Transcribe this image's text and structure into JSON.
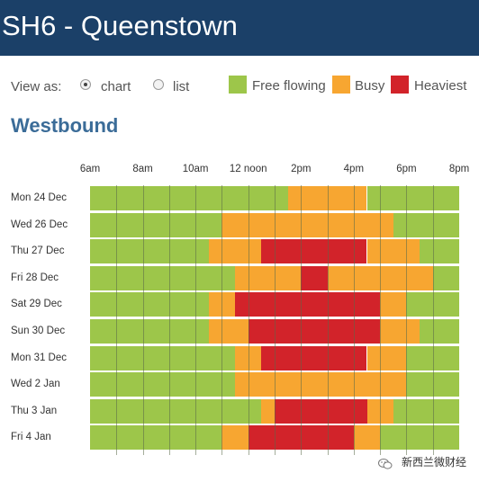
{
  "header": {
    "title": "SH6 - Queenstown"
  },
  "view": {
    "label": "View as:",
    "options": [
      "chart",
      "list"
    ],
    "selected": "chart"
  },
  "legend": [
    {
      "label": "Free flowing",
      "color": "#9dc64a"
    },
    {
      "label": "Busy",
      "color": "#f7a631"
    },
    {
      "label": "Heaviest",
      "color": "#d2232a"
    }
  ],
  "direction": "Westbound",
  "chart_data": {
    "type": "heatmap",
    "x_ticks": [
      "6am",
      "8am",
      "10am",
      "12 noon",
      "2pm",
      "4pm",
      "6pm",
      "8pm"
    ],
    "x_range_hours": [
      6,
      20
    ],
    "levels": {
      "F": "Free flowing",
      "B": "Busy",
      "H": "Heaviest"
    },
    "rows": [
      {
        "label": "Mon 24 Dec",
        "segments": [
          [
            6,
            13.5,
            "F"
          ],
          [
            13.5,
            16.5,
            "B"
          ],
          [
            16.5,
            20,
            "F"
          ]
        ]
      },
      {
        "label": "Wed 26 Dec",
        "segments": [
          [
            6,
            11,
            "F"
          ],
          [
            11,
            17.5,
            "B"
          ],
          [
            17.5,
            20,
            "F"
          ]
        ]
      },
      {
        "label": "Thu 27 Dec",
        "segments": [
          [
            6,
            10.5,
            "F"
          ],
          [
            10.5,
            12.5,
            "B"
          ],
          [
            12.5,
            16.5,
            "H"
          ],
          [
            16.5,
            18.5,
            "B"
          ],
          [
            18.5,
            20,
            "F"
          ]
        ]
      },
      {
        "label": "Fri 28 Dec",
        "segments": [
          [
            6,
            11.5,
            "F"
          ],
          [
            11.5,
            14,
            "B"
          ],
          [
            14,
            15,
            "H"
          ],
          [
            15,
            19,
            "B"
          ],
          [
            19,
            20,
            "F"
          ]
        ]
      },
      {
        "label": "Sat 29 Dec",
        "segments": [
          [
            6,
            10.5,
            "F"
          ],
          [
            10.5,
            11.5,
            "B"
          ],
          [
            11.5,
            17,
            "H"
          ],
          [
            17,
            18,
            "B"
          ],
          [
            18,
            20,
            "F"
          ]
        ]
      },
      {
        "label": "Sun 30 Dec",
        "segments": [
          [
            6,
            10.5,
            "F"
          ],
          [
            10.5,
            12,
            "B"
          ],
          [
            12,
            17,
            "H"
          ],
          [
            17,
            18.5,
            "B"
          ],
          [
            18.5,
            20,
            "F"
          ]
        ]
      },
      {
        "label": "Mon 31 Dec",
        "segments": [
          [
            6,
            11.5,
            "F"
          ],
          [
            11.5,
            12.5,
            "B"
          ],
          [
            12.5,
            16.5,
            "H"
          ],
          [
            16.5,
            18,
            "B"
          ],
          [
            18,
            20,
            "F"
          ]
        ]
      },
      {
        "label": "Wed 2 Jan",
        "segments": [
          [
            6,
            11.5,
            "F"
          ],
          [
            11.5,
            18,
            "B"
          ],
          [
            18,
            20,
            "F"
          ]
        ]
      },
      {
        "label": "Thu 3 Jan",
        "segments": [
          [
            6,
            12.5,
            "F"
          ],
          [
            12.5,
            13,
            "B"
          ],
          [
            13,
            16.5,
            "H"
          ],
          [
            16.5,
            17.5,
            "B"
          ],
          [
            17.5,
            20,
            "F"
          ]
        ]
      },
      {
        "label": "Fri 4 Jan",
        "segments": [
          [
            6,
            11,
            "F"
          ],
          [
            11,
            12,
            "B"
          ],
          [
            12,
            16,
            "H"
          ],
          [
            16,
            17,
            "B"
          ],
          [
            17,
            20,
            "F"
          ]
        ]
      }
    ]
  },
  "watermark": "新西兰微财经"
}
